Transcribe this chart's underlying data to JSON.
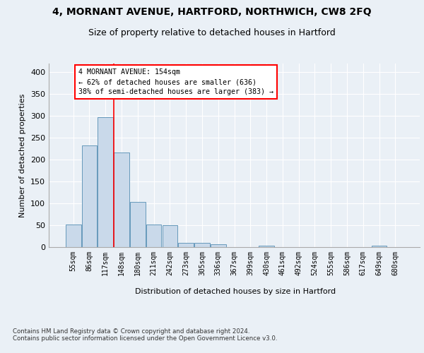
{
  "title1": "4, MORNANT AVENUE, HARTFORD, NORTHWICH, CW8 2FQ",
  "title2": "Size of property relative to detached houses in Hartford",
  "xlabel": "Distribution of detached houses by size in Hartford",
  "ylabel": "Number of detached properties",
  "bar_labels": [
    "55sqm",
    "86sqm",
    "117sqm",
    "148sqm",
    "180sqm",
    "211sqm",
    "242sqm",
    "273sqm",
    "305sqm",
    "336sqm",
    "367sqm",
    "399sqm",
    "430sqm",
    "461sqm",
    "492sqm",
    "524sqm",
    "555sqm",
    "586sqm",
    "617sqm",
    "649sqm",
    "680sqm"
  ],
  "bar_values": [
    52,
    232,
    298,
    216,
    103,
    52,
    50,
    10,
    10,
    6,
    0,
    0,
    4,
    0,
    0,
    0,
    0,
    0,
    0,
    3,
    0
  ],
  "bar_color": "#c9d9ea",
  "bar_edge_color": "#6699bb",
  "annotation_box_text": "4 MORNANT AVENUE: 154sqm\n← 62% of detached houses are smaller (636)\n38% of semi-detached houses are larger (383) →",
  "ylim": [
    0,
    420
  ],
  "yticks": [
    0,
    50,
    100,
    150,
    200,
    250,
    300,
    350,
    400
  ],
  "footnote": "Contains HM Land Registry data © Crown copyright and database right 2024.\nContains public sector information licensed under the Open Government Licence v3.0.",
  "bg_color": "#eaf0f6",
  "title1_fontsize": 10,
  "title2_fontsize": 9
}
